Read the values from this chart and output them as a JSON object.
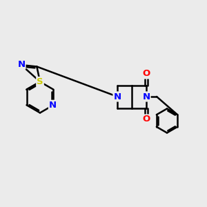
{
  "bg_color": "#ebebeb",
  "bond_color": "#000000",
  "N_color": "#0000ff",
  "O_color": "#ff0000",
  "S_color": "#cccc00",
  "bond_width": 1.8,
  "figsize": [
    3.0,
    3.0
  ],
  "dpi": 100,
  "xlim": [
    -1.6,
    1.4
  ],
  "ylim": [
    -0.85,
    0.75
  ]
}
